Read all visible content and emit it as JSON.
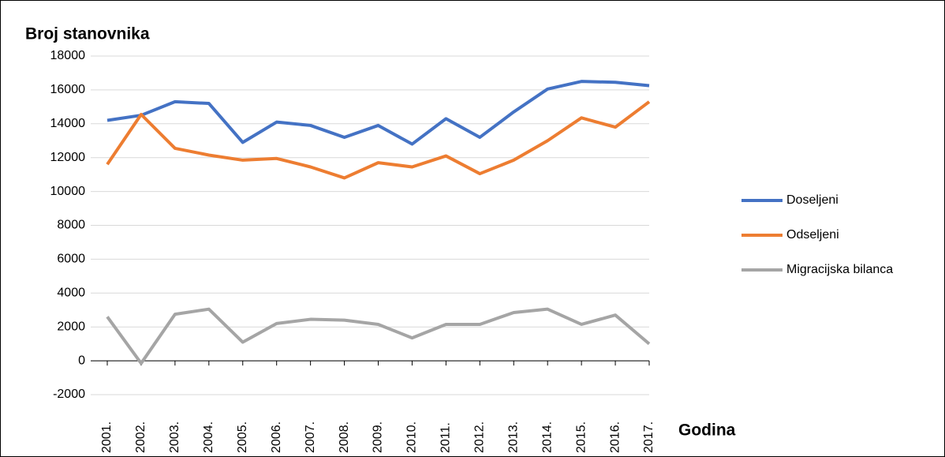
{
  "chart_data": {
    "type": "line",
    "y_label": "Broj stanovnika",
    "x_label": "Godina",
    "categories": [
      "2001.",
      "2002.",
      "2003.",
      "2004.",
      "2005.",
      "2006.",
      "2007.",
      "2008.",
      "2009.",
      "2010.",
      "2011.",
      "2012.",
      "2013.",
      "2014.",
      "2015.",
      "2016.",
      "2017."
    ],
    "series": [
      {
        "name": "Doseljeni",
        "color": "#4472c4",
        "values": [
          14200,
          14500,
          15300,
          15200,
          12900,
          14100,
          13900,
          13200,
          13900,
          12800,
          14300,
          13200,
          14700,
          16050,
          16500,
          16450,
          16250
        ]
      },
      {
        "name": "Odseljeni",
        "color": "#ed7d31",
        "values": [
          11600,
          14550,
          12550,
          12150,
          11850,
          11950,
          11450,
          10800,
          11700,
          11450,
          12100,
          11050,
          11850,
          13000,
          14350,
          13800,
          15300
        ]
      },
      {
        "name": "Migracijska bilanca",
        "color": "#a5a5a5",
        "values": [
          2600,
          -150,
          2750,
          3050,
          1100,
          2200,
          2450,
          2400,
          2150,
          1350,
          2150,
          2150,
          2850,
          3050,
          2150,
          2700,
          1000
        ]
      }
    ],
    "ylim": [
      -2000,
      18000
    ],
    "yticks": [
      -2000,
      0,
      2000,
      4000,
      6000,
      8000,
      10000,
      12000,
      14000,
      16000,
      18000
    ],
    "grid": true,
    "legend": "right"
  }
}
